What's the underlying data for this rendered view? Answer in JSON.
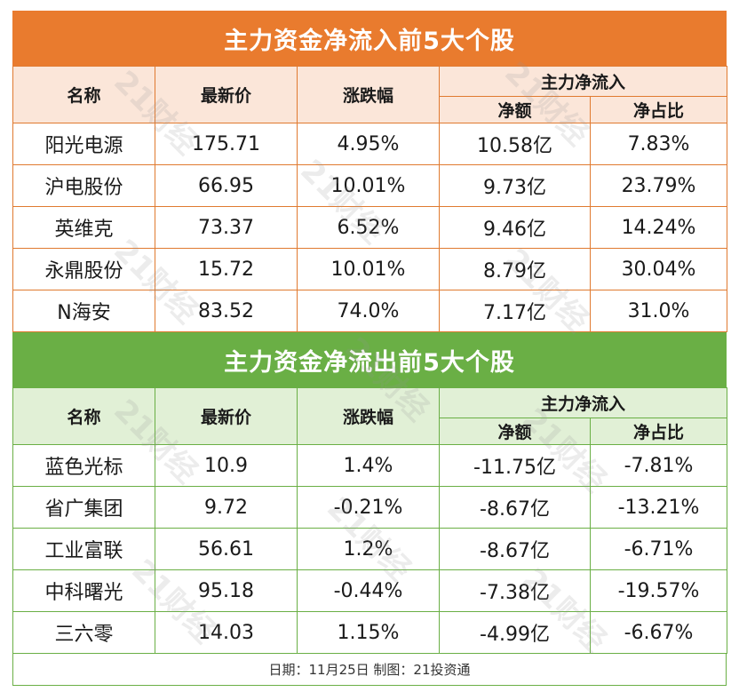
{
  "inflow": {
    "title": "主力资金净流入前5大个股",
    "headers": {
      "name": "名称",
      "price": "最新价",
      "change": "涨跌幅",
      "group": "主力净流入",
      "amount": "净额",
      "ratio": "净占比"
    },
    "rows": [
      {
        "name": "阳光电源",
        "price": "175.71",
        "change": "4.95%",
        "amount": "10.58亿",
        "ratio": "7.83%"
      },
      {
        "name": "沪电股份",
        "price": "66.95",
        "change": "10.01%",
        "amount": "9.73亿",
        "ratio": "23.79%"
      },
      {
        "name": "英维克",
        "price": "73.37",
        "change": "6.52%",
        "amount": "9.46亿",
        "ratio": "14.24%"
      },
      {
        "name": "永鼎股份",
        "price": "15.72",
        "change": "10.01%",
        "amount": "8.79亿",
        "ratio": "30.04%"
      },
      {
        "name": "N海安",
        "price": "83.52",
        "change": "74.0%",
        "amount": "7.17亿",
        "ratio": "31.0%"
      }
    ]
  },
  "outflow": {
    "title": "主力资金净流出前5大个股",
    "headers": {
      "name": "名称",
      "price": "最新价",
      "change": "涨跌幅",
      "group": "主力净流入",
      "amount": "净额",
      "ratio": "净占比"
    },
    "rows": [
      {
        "name": "蓝色光标",
        "price": "10.9",
        "change": "1.4%",
        "amount": "-11.75亿",
        "ratio": "-7.81%"
      },
      {
        "name": "省广集团",
        "price": "9.72",
        "change": "-0.21%",
        "amount": "-8.67亿",
        "ratio": "-13.21%"
      },
      {
        "name": "工业富联",
        "price": "56.61",
        "change": "1.2%",
        "amount": "-8.67亿",
        "ratio": "-6.71%"
      },
      {
        "name": "中科曙光",
        "price": "95.18",
        "change": "-0.44%",
        "amount": "-7.38亿",
        "ratio": "-19.57%"
      },
      {
        "name": "三六零",
        "price": "14.03",
        "change": "1.15%",
        "amount": "-4.99亿",
        "ratio": "-6.67%"
      }
    ]
  },
  "footer": "日期：11月25日 制图：21投资通",
  "watermark": "21财经",
  "colors": {
    "orange": "#e97b2e",
    "green": "#6aaf45",
    "orange_header_bg": "#fbe6d9",
    "green_header_bg": "#e1f0d6"
  }
}
